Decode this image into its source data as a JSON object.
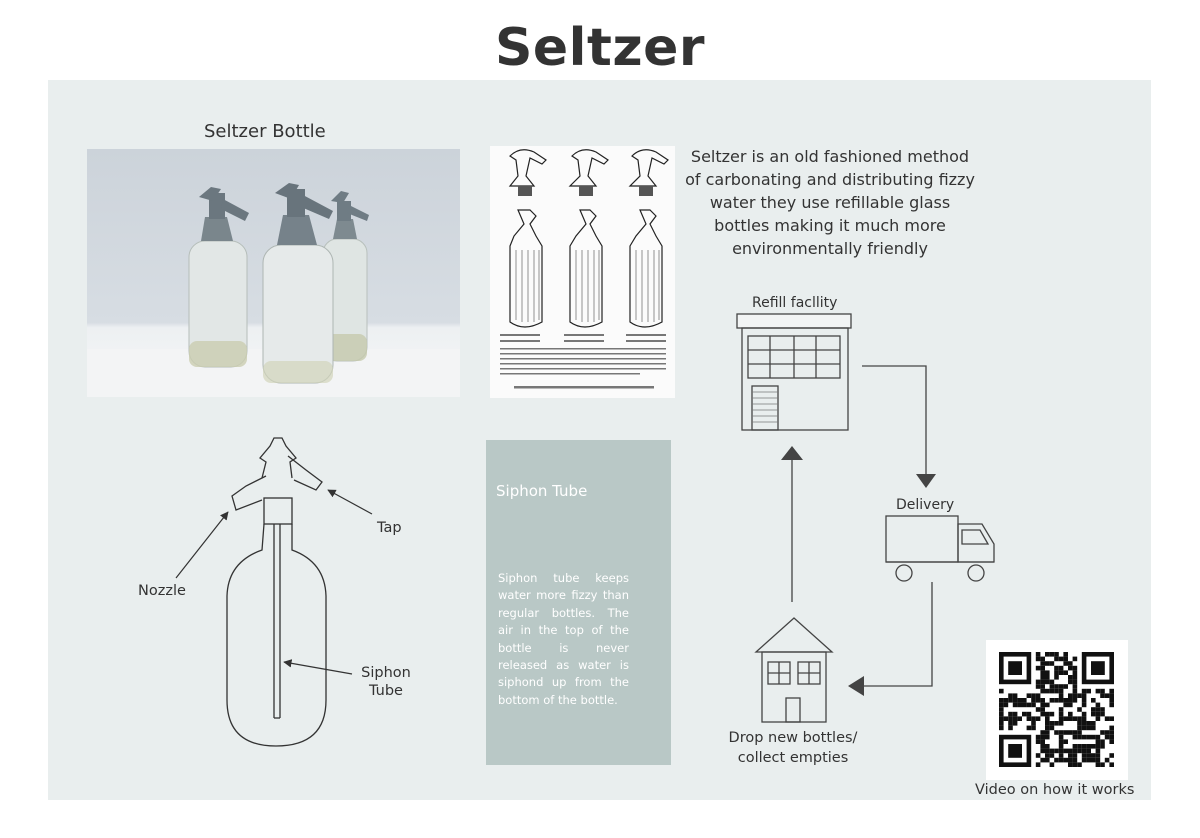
{
  "page": {
    "title": "Seltzer",
    "bottle_heading": "Seltzer Bottle",
    "description": "Seltzer is an old fashioned method of carbonating and distributing fizzy water they use refillable glass bottles making it much more environmentally friendly"
  },
  "bottle_diagram": {
    "labels": {
      "tap": "Tap",
      "nozzle": "Nozzle",
      "siphon_tube": "Siphon Tube"
    }
  },
  "siphon_card": {
    "title": "Siphon Tube",
    "body": "Siphon tube keeps water more fizzy than regular bottles. The air in the top of the bottle is never released as water is siphond up from the bottom of the bottle."
  },
  "cycle": {
    "refill": "Refill facllity",
    "delivery": "Delivery",
    "drop": "Drop new bottles/ collect empties"
  },
  "qr": {
    "caption": "Video on how it works"
  },
  "colors": {
    "panel": "#e9eeee",
    "card": "#b9c8c6",
    "text": "#333333"
  }
}
